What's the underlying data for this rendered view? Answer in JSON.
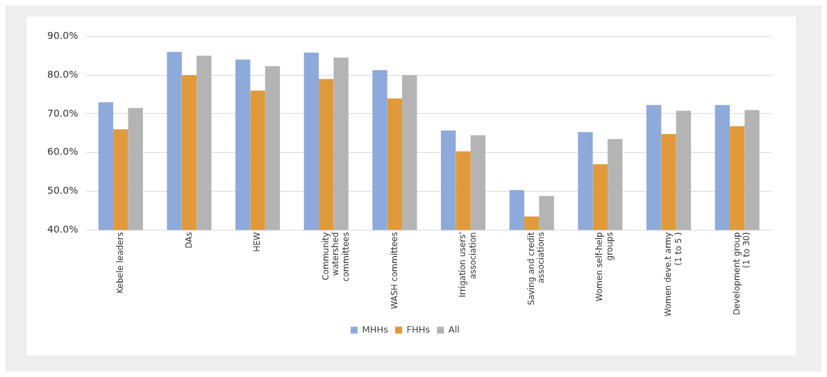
{
  "chart_data": {
    "type": "bar",
    "categories": [
      "Kebele leaders",
      "DAs",
      "HEW",
      "Community watershed committees",
      "WASH committees",
      "Irrigation users' association",
      "Saving and credit associations",
      "Women self-help groups",
      "Women deve.t army (1 to 5 )",
      "Development group (1 to 30)"
    ],
    "series": [
      {
        "name": "MHHs",
        "color": "#8eaadb",
        "values": [
          73,
          86,
          84,
          85.8,
          81.3,
          65.7,
          50.3,
          65.3,
          72.3,
          72.3
        ]
      },
      {
        "name": "FHHs",
        "color": "#e09a3c",
        "values": [
          66,
          80,
          76,
          79,
          74,
          60.3,
          43.5,
          57,
          64.8,
          66.8
        ]
      },
      {
        "name": "All",
        "color": "#b4b4b4",
        "values": [
          71.5,
          85,
          82.3,
          84.5,
          80,
          64.5,
          48.8,
          63.5,
          70.8,
          71
        ]
      }
    ],
    "ylim": [
      40,
      90
    ],
    "yticks": [
      {
        "value": 40,
        "label": "40.0%"
      },
      {
        "value": 50,
        "label": "50.0%"
      },
      {
        "value": 60,
        "label": "60.0%"
      },
      {
        "value": 70,
        "label": "70.0%"
      },
      {
        "value": 80,
        "label": "80.0%"
      },
      {
        "value": 90,
        "label": "90.0%"
      }
    ],
    "grid": "y",
    "legend": "bottom"
  }
}
